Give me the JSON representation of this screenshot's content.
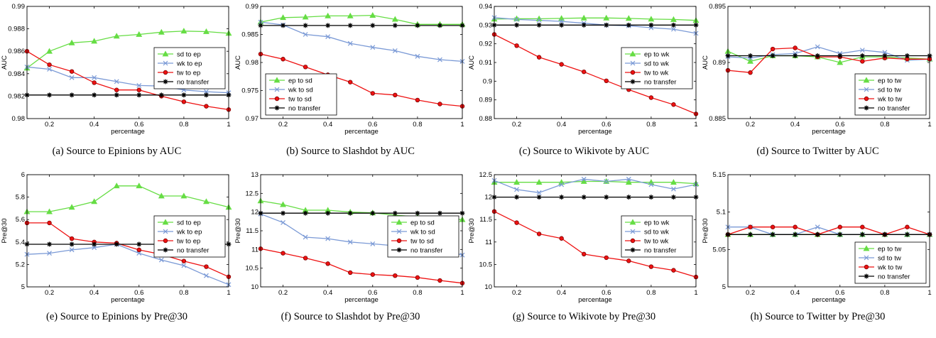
{
  "chart_data": [
    {
      "type": "line",
      "caption": "(a) Source to Epinions by AUC",
      "xlabel": "percentage",
      "ylabel": "AUC",
      "xlim": [
        0.1,
        1
      ],
      "ylim": [
        0.98,
        0.99
      ],
      "xticks": [
        0.2,
        0.4,
        0.6,
        0.8,
        1
      ],
      "xtick_labels": [
        "0.2",
        "0.4",
        "0.6",
        "0.8",
        "1"
      ],
      "yticks": [
        0.98,
        0.982,
        0.984,
        0.986,
        0.988,
        0.99
      ],
      "ytick_labels": [
        "0.98",
        "0.982",
        "0.984",
        "0.986",
        "0.988",
        "0.99"
      ],
      "legend_position": "center-right",
      "x": [
        0.1,
        0.2,
        0.3,
        0.4,
        0.5,
        0.6,
        0.7,
        0.8,
        0.9,
        1.0
      ],
      "series": [
        {
          "name": "sd to ep",
          "color": "#66dd44",
          "marker": "triangle",
          "values": [
            0.9845,
            0.986,
            0.98675,
            0.9869,
            0.98735,
            0.9875,
            0.9877,
            0.9878,
            0.98775,
            0.9876
          ]
        },
        {
          "name": "wk to ep",
          "color": "#7b9ad6",
          "marker": "x",
          "values": [
            0.9846,
            0.9844,
            0.98365,
            0.98365,
            0.9833,
            0.98295,
            0.9829,
            0.98255,
            0.9824,
            0.9823
          ]
        },
        {
          "name": "tw to ep",
          "color": "#ee1111",
          "marker": "circle",
          "values": [
            0.986,
            0.9848,
            0.9842,
            0.9832,
            0.98255,
            0.98255,
            0.982,
            0.9815,
            0.9811,
            0.9808
          ]
        },
        {
          "name": "no transfer",
          "color": "#000000",
          "marker": "star",
          "values": [
            0.9821,
            0.9821,
            0.9821,
            0.9821,
            0.9821,
            0.9821,
            0.9821,
            0.9821,
            0.9821,
            0.9821
          ]
        }
      ]
    },
    {
      "type": "line",
      "caption": "(b) Source to Slashdot by AUC",
      "xlabel": "percentage",
      "ylabel": "AUC",
      "xlim": [
        0.1,
        1
      ],
      "ylim": [
        0.97,
        0.99
      ],
      "xticks": [
        0.2,
        0.4,
        0.6,
        0.8,
        1
      ],
      "xtick_labels": [
        "0.2",
        "0.4",
        "0.6",
        "0.8",
        "1"
      ],
      "yticks": [
        0.97,
        0.975,
        0.98,
        0.985,
        0.99
      ],
      "ytick_labels": [
        "0.97",
        "0.975",
        "0.98",
        "0.985",
        "0.99"
      ],
      "legend_position": "bottom-left",
      "x": [
        0.1,
        0.2,
        0.3,
        0.4,
        0.5,
        0.6,
        0.7,
        0.8,
        0.9,
        1.0
      ],
      "series": [
        {
          "name": "ep to sd",
          "color": "#66dd44",
          "marker": "triangle",
          "values": [
            0.9872,
            0.988,
            0.9881,
            0.9883,
            0.9883,
            0.9884,
            0.9877,
            0.9868,
            0.9868,
            0.9868
          ]
        },
        {
          "name": "wk to sd",
          "color": "#7b9ad6",
          "marker": "x",
          "values": [
            0.9872,
            0.9867,
            0.985,
            0.9846,
            0.9834,
            0.9827,
            0.9821,
            0.9811,
            0.9805,
            0.9802
          ]
        },
        {
          "name": "tw to sd",
          "color": "#ee1111",
          "marker": "circle",
          "values": [
            0.9815,
            0.9806,
            0.9792,
            0.9778,
            0.9765,
            0.9745,
            0.9742,
            0.9733,
            0.9726,
            0.9722
          ]
        },
        {
          "name": "no transfer",
          "color": "#000000",
          "marker": "star",
          "values": [
            0.9866,
            0.9866,
            0.9866,
            0.9866,
            0.9866,
            0.9866,
            0.9866,
            0.9866,
            0.9866,
            0.9866
          ]
        }
      ]
    },
    {
      "type": "line",
      "caption": "(c) Source to Wikivote by AUC",
      "xlabel": "percentage",
      "ylabel": "AUC",
      "xlim": [
        0.1,
        1
      ],
      "ylim": [
        0.88,
        0.94
      ],
      "xticks": [
        0.2,
        0.4,
        0.6,
        0.8,
        1
      ],
      "xtick_labels": [
        "0.2",
        "0.4",
        "0.6",
        "0.8",
        "1"
      ],
      "yticks": [
        0.88,
        0.89,
        0.9,
        0.91,
        0.92,
        0.93,
        0.94
      ],
      "ytick_labels": [
        "0.88",
        "0.89",
        "0.9",
        "0.91",
        "0.92",
        "0.93",
        "0.94"
      ],
      "legend_position": "center-right",
      "x": [
        0.1,
        0.2,
        0.3,
        0.4,
        0.5,
        0.6,
        0.7,
        0.8,
        0.9,
        1.0
      ],
      "series": [
        {
          "name": "ep to wk",
          "color": "#66dd44",
          "marker": "triangle",
          "values": [
            0.9332,
            0.9334,
            0.9334,
            0.9336,
            0.9338,
            0.9338,
            0.9336,
            0.9332,
            0.933,
            0.9325
          ]
        },
        {
          "name": "sd to wk",
          "color": "#7b9ad6",
          "marker": "x",
          "values": [
            0.934,
            0.933,
            0.9325,
            0.932,
            0.931,
            0.93,
            0.9296,
            0.9286,
            0.9278,
            0.9256
          ]
        },
        {
          "name": "tw to wk",
          "color": "#ee1111",
          "marker": "circle",
          "values": [
            0.925,
            0.919,
            0.9128,
            0.909,
            0.905,
            0.9002,
            0.8955,
            0.8912,
            0.8875,
            0.8825
          ]
        },
        {
          "name": "no transfer",
          "color": "#000000",
          "marker": "star",
          "values": [
            0.93,
            0.93,
            0.93,
            0.93,
            0.93,
            0.93,
            0.93,
            0.93,
            0.93,
            0.93
          ]
        }
      ]
    },
    {
      "type": "line",
      "caption": "(d) Source to Twitter by AUC",
      "xlabel": "percentage",
      "ylabel": "AUC",
      "xlim": [
        0.1,
        1
      ],
      "ylim": [
        0.885,
        0.895
      ],
      "xticks": [
        0.2,
        0.4,
        0.6,
        0.8,
        1
      ],
      "xtick_labels": [
        "0.2",
        "0.4",
        "0.6",
        "0.8",
        "1"
      ],
      "yticks": [
        0.885,
        0.89,
        0.895
      ],
      "ytick_labels": [
        "0.885",
        "0.89",
        "0.895"
      ],
      "legend_position": "bottom-right",
      "x": [
        0.1,
        0.2,
        0.3,
        0.4,
        0.5,
        0.6,
        0.7,
        0.8,
        0.9,
        1.0
      ],
      "series": [
        {
          "name": "ep to tw",
          "color": "#66dd44",
          "marker": "triangle",
          "values": [
            0.891,
            0.8901,
            0.8906,
            0.8906,
            0.8905,
            0.89,
            0.8905,
            0.8905,
            0.8904,
            0.8903
          ]
        },
        {
          "name": "sd to tw",
          "color": "#7b9ad6",
          "marker": "x",
          "values": [
            0.8905,
            0.8904,
            0.8907,
            0.8908,
            0.8914,
            0.8908,
            0.8911,
            0.8909,
            0.8902,
            0.8903
          ]
        },
        {
          "name": "wk to tw",
          "color": "#ee1111",
          "marker": "circle",
          "values": [
            0.8893,
            0.8891,
            0.8912,
            0.8913,
            0.8905,
            0.8905,
            0.8901,
            0.8904,
            0.8903,
            0.8903
          ]
        },
        {
          "name": "no transfer",
          "color": "#000000",
          "marker": "star",
          "values": [
            0.8906,
            0.8906,
            0.8906,
            0.8906,
            0.8906,
            0.8906,
            0.8906,
            0.8906,
            0.8906,
            0.8906
          ]
        }
      ]
    },
    {
      "type": "line",
      "caption": "(e) Source to Epinions by Pre@30",
      "xlabel": "percentage",
      "ylabel": "Pre@30",
      "xlim": [
        0.1,
        1
      ],
      "ylim": [
        5,
        6
      ],
      "xticks": [
        0.2,
        0.4,
        0.6,
        0.8,
        1
      ],
      "xtick_labels": [
        "0.2",
        "0.4",
        "0.6",
        "0.8",
        "1"
      ],
      "yticks": [
        5,
        5.2,
        5.4,
        5.6,
        5.8,
        6
      ],
      "ytick_labels": [
        "5",
        "5.2",
        "5.4",
        "5.6",
        "5.8",
        "6"
      ],
      "legend_position": "center-right",
      "x": [
        0.1,
        0.2,
        0.3,
        0.4,
        0.5,
        0.6,
        0.7,
        0.8,
        0.9,
        1.0
      ],
      "series": [
        {
          "name": "sd to ep",
          "color": "#66dd44",
          "marker": "triangle",
          "values": [
            5.67,
            5.67,
            5.71,
            5.76,
            5.9,
            5.9,
            5.81,
            5.81,
            5.76,
            5.71
          ]
        },
        {
          "name": "wk to ep",
          "color": "#7b9ad6",
          "marker": "x",
          "values": [
            5.29,
            5.3,
            5.33,
            5.35,
            5.38,
            5.3,
            5.24,
            5.19,
            5.1,
            5.02
          ]
        },
        {
          "name": "tw to ep",
          "color": "#ee1111",
          "marker": "circle",
          "values": [
            5.57,
            5.57,
            5.43,
            5.4,
            5.39,
            5.33,
            5.29,
            5.23,
            5.18,
            5.09
          ]
        },
        {
          "name": "no transfer",
          "color": "#000000",
          "marker": "star",
          "values": [
            5.38,
            5.38,
            5.38,
            5.38,
            5.38,
            5.38,
            5.38,
            5.38,
            5.38,
            5.38
          ]
        }
      ]
    },
    {
      "type": "line",
      "caption": "(f) Source to Slashdot by Pre@30",
      "xlabel": "percentage",
      "ylabel": "Pre@30",
      "xlim": [
        0.1,
        1
      ],
      "ylim": [
        10,
        13
      ],
      "xticks": [
        0.2,
        0.4,
        0.6,
        0.8,
        1
      ],
      "xtick_labels": [
        "0.2",
        "0.4",
        "0.6",
        "0.8",
        "1"
      ],
      "yticks": [
        10,
        10.5,
        11,
        11.5,
        12,
        12.5,
        13
      ],
      "ytick_labels": [
        "10",
        "10.5",
        "11",
        "11.5",
        "12",
        "12.5",
        "13"
      ],
      "legend_position": "center-right",
      "x": [
        0.1,
        0.2,
        0.3,
        0.4,
        0.5,
        0.6,
        0.7,
        0.8,
        0.9,
        1.0
      ],
      "series": [
        {
          "name": "ep to sd",
          "color": "#66dd44",
          "marker": "triangle",
          "values": [
            12.3,
            12.2,
            12.05,
            12.05,
            12.0,
            11.98,
            11.92,
            11.87,
            11.82,
            11.8
          ]
        },
        {
          "name": "wk to sd",
          "color": "#7b9ad6",
          "marker": "x",
          "values": [
            11.95,
            11.72,
            11.33,
            11.29,
            11.2,
            11.15,
            11.1,
            11.05,
            11.02,
            10.85
          ]
        },
        {
          "name": "tw to sd",
          "color": "#ee1111",
          "marker": "circle",
          "values": [
            11.02,
            10.9,
            10.77,
            10.62,
            10.38,
            10.33,
            10.3,
            10.25,
            10.17,
            10.1
          ]
        },
        {
          "name": "no transfer",
          "color": "#000000",
          "marker": "star",
          "values": [
            11.97,
            11.97,
            11.97,
            11.97,
            11.97,
            11.97,
            11.97,
            11.97,
            11.97,
            11.97
          ]
        }
      ]
    },
    {
      "type": "line",
      "caption": "(g) Source to Wikivote by Pre@30",
      "xlabel": "percentage",
      "ylabel": "Pre@30",
      "xlim": [
        0.1,
        1
      ],
      "ylim": [
        10,
        12.5
      ],
      "xticks": [
        0.2,
        0.4,
        0.6,
        0.8,
        1
      ],
      "xtick_labels": [
        "0.2",
        "0.4",
        "0.6",
        "0.8",
        "1"
      ],
      "yticks": [
        10,
        10.5,
        11,
        11.5,
        12,
        12.5
      ],
      "ytick_labels": [
        "10",
        "10.5",
        "11",
        "11.5",
        "12",
        "12.5"
      ],
      "legend_position": "center-right",
      "x": [
        0.1,
        0.2,
        0.3,
        0.4,
        0.5,
        0.6,
        0.7,
        0.8,
        0.9,
        1.0
      ],
      "series": [
        {
          "name": "ep to wk",
          "color": "#66dd44",
          "marker": "triangle",
          "values": [
            12.33,
            12.33,
            12.33,
            12.33,
            12.35,
            12.35,
            12.33,
            12.33,
            12.33,
            12.3
          ]
        },
        {
          "name": "sd to wk",
          "color": "#7b9ad6",
          "marker": "x",
          "values": [
            12.37,
            12.17,
            12.1,
            12.28,
            12.4,
            12.35,
            12.4,
            12.28,
            12.18,
            12.28
          ]
        },
        {
          "name": "tw to wk",
          "color": "#ee1111",
          "marker": "circle",
          "values": [
            11.68,
            11.43,
            11.18,
            11.08,
            10.73,
            10.65,
            10.58,
            10.45,
            10.37,
            10.22
          ]
        },
        {
          "name": "no transfer",
          "color": "#000000",
          "marker": "star",
          "values": [
            12.0,
            12.0,
            12.0,
            12.0,
            12.0,
            12.0,
            12.0,
            12.0,
            12.0,
            12.0
          ]
        }
      ]
    },
    {
      "type": "line",
      "caption": "(h) Source to Twitter by Pre@30",
      "xlabel": "percentage",
      "ylabel": "Pre@30",
      "xlim": [
        0.1,
        1
      ],
      "ylim": [
        5,
        5.15
      ],
      "xticks": [
        0.2,
        0.4,
        0.6,
        0.8,
        1
      ],
      "xtick_labels": [
        "0.2",
        "0.4",
        "0.6",
        "0.8",
        "1"
      ],
      "yticks": [
        5,
        5.05,
        5.1,
        5.15
      ],
      "ytick_labels": [
        "5",
        "5.05",
        "5.1",
        "5.15"
      ],
      "legend_position": "bottom-right",
      "x": [
        0.1,
        0.2,
        0.3,
        0.4,
        0.5,
        0.6,
        0.7,
        0.8,
        0.9,
        1.0
      ],
      "series": [
        {
          "name": "ep to tw",
          "color": "#66dd44",
          "marker": "triangle",
          "values": [
            5.07,
            5.07,
            5.07,
            5.07,
            5.07,
            5.07,
            5.07,
            5.07,
            5.07,
            5.07
          ]
        },
        {
          "name": "sd to tw",
          "color": "#7b9ad6",
          "marker": "x",
          "values": [
            5.08,
            5.08,
            5.07,
            5.07,
            5.08,
            5.07,
            5.07,
            5.07,
            5.07,
            5.07
          ]
        },
        {
          "name": "wk to tw",
          "color": "#ee1111",
          "marker": "circle",
          "values": [
            5.07,
            5.08,
            5.08,
            5.08,
            5.07,
            5.08,
            5.08,
            5.07,
            5.08,
            5.07
          ]
        },
        {
          "name": "no transfer",
          "color": "#000000",
          "marker": "star",
          "values": [
            5.07,
            5.07,
            5.07,
            5.07,
            5.07,
            5.07,
            5.07,
            5.07,
            5.07,
            5.07
          ]
        }
      ]
    }
  ]
}
